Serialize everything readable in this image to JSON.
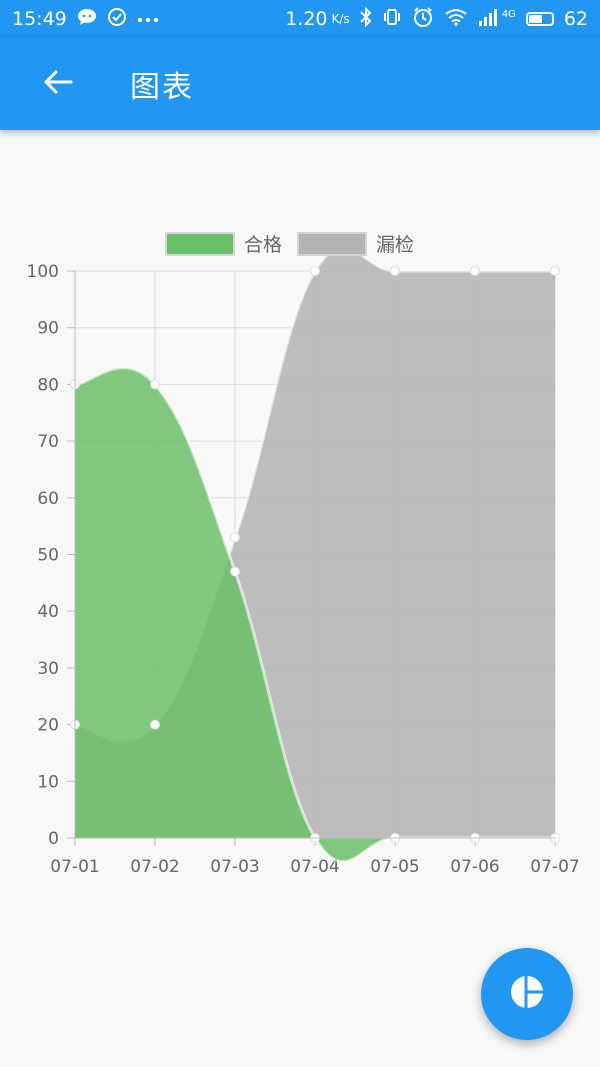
{
  "status_bar": {
    "time": "15:49",
    "left_icons": [
      "chat-icon",
      "check-circle-icon",
      "more-dots-icon"
    ],
    "net_speed": "1.20",
    "net_unit": "K/s",
    "network": "4G",
    "battery": "62",
    "battery_level": 0.62
  },
  "app_bar": {
    "title": "图表",
    "back_icon": "arrow-left-icon"
  },
  "fab": {
    "icon": "pie-chart-icon"
  },
  "colors": {
    "primary": "#2196f3",
    "series_qualified": "#6abf69",
    "series_missed": "#b0b0b0"
  },
  "chart_data": {
    "type": "area",
    "categories": [
      "07-01",
      "07-02",
      "07-03",
      "07-04",
      "07-05",
      "07-06",
      "07-07"
    ],
    "series": [
      {
        "name": "合格",
        "values": [
          80,
          80,
          47,
          0,
          0,
          0,
          0
        ],
        "color": "#6abf69"
      },
      {
        "name": "漏检",
        "values": [
          20,
          20,
          53,
          100,
          100,
          100,
          100
        ],
        "color": "#b3b3b3"
      }
    ],
    "ylim": [
      0,
      100
    ],
    "yticks": [
      0,
      10,
      20,
      30,
      40,
      50,
      60,
      70,
      80,
      90,
      100
    ],
    "grid": true,
    "legend_position": "top-center",
    "smooth": true
  }
}
